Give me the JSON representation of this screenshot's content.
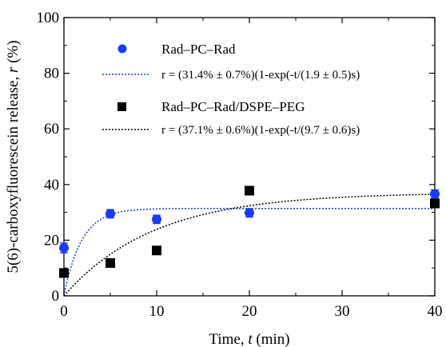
{
  "chart_data": {
    "type": "scatter",
    "xlabel_main": "Time, ",
    "xlabel_var": "t",
    "xlabel_unit": " (min)",
    "ylabel_main": "5(6)-carboxyfluorescein release, ",
    "ylabel_var": "r",
    "ylabel_unit": " (%)",
    "xlim": [
      0,
      40
    ],
    "ylim": [
      0,
      100
    ],
    "xticks": [
      0,
      10,
      20,
      30,
      40
    ],
    "yticks": [
      0,
      20,
      40,
      60,
      80,
      100
    ],
    "legend_placement": "top-left",
    "grid": false,
    "series": [
      {
        "name": "Rad–PC–Rad",
        "marker": "circle",
        "color": "#1a3cf0",
        "x": [
          0,
          5,
          10,
          20,
          40
        ],
        "y": [
          17.2,
          29.5,
          27.5,
          29.8,
          36.6
        ],
        "err": [
          1.8,
          1.5,
          1.5,
          1.5,
          1.5
        ],
        "fit": {
          "A": 31.4,
          "tau": 1.9
        },
        "fit_label": "r = (31.4% ± 0.7%)(1-exp(-t/(1.9 ± 0.5)s)"
      },
      {
        "name": "Rad–PC–Rad/DSPE–PEG",
        "marker": "square",
        "color": "#000000",
        "x": [
          0,
          5,
          10,
          20,
          40
        ],
        "y": [
          8.2,
          11.8,
          16.3,
          37.8,
          33.2
        ],
        "err": [
          1.2,
          1.0,
          1.2,
          1.2,
          1.5
        ],
        "fit": {
          "A": 37.1,
          "tau": 9.7
        },
        "fit_label": "r = (37.1% ± 0.6%)(1-exp(-t/(9.7 ± 0.6)s)"
      }
    ]
  }
}
